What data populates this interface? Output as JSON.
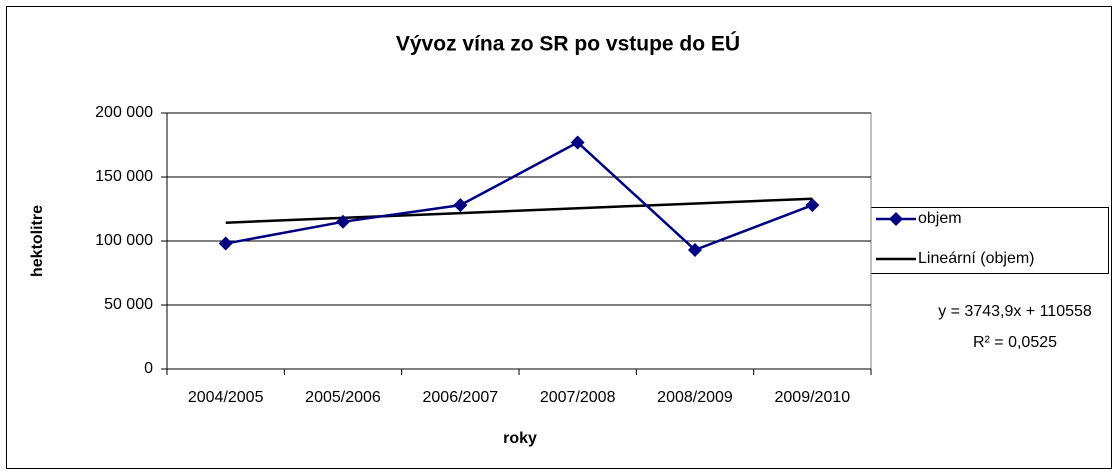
{
  "chart_data": {
    "type": "line",
    "title": "Vývoz vína zo SR po vstupe do EÚ",
    "x_label": "roky",
    "y_label": "hektolitre",
    "categories": [
      "2004/2005",
      "2005/2006",
      "2006/2007",
      "2007/2008",
      "2008/2009",
      "2009/2010"
    ],
    "series": [
      {
        "name": "objem",
        "color": "#000080",
        "marker": "diamond",
        "values": [
          98000,
          115000,
          128000,
          177000,
          93000,
          128000
        ]
      },
      {
        "name": "Lineární (objem)",
        "color": "#000000",
        "marker": "none",
        "values": [
          114302,
          118046,
          121790,
          125534,
          129277,
          133021
        ]
      }
    ],
    "ylim": [
      0,
      200000
    ],
    "yticks": [
      0,
      {
        "value": 50000,
        "label": "50 000"
      },
      {
        "value": 100000,
        "label": "100 000"
      },
      {
        "value": 150000,
        "label": "150 000"
      },
      {
        "value": 200000,
        "label": "200 000"
      }
    ],
    "grid": true,
    "legend": "right",
    "annotations": [
      "y = 3743,9x + 110558",
      "R² = 0,0525"
    ]
  }
}
